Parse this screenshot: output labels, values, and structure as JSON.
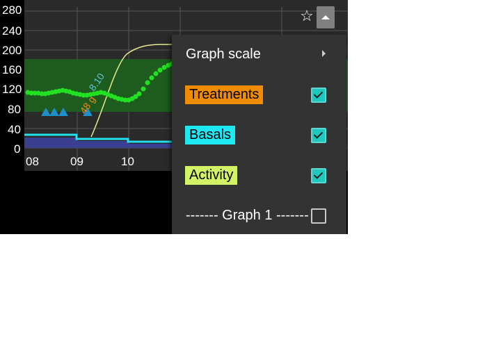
{
  "graph": {
    "y_ticks": [
      "280",
      "240",
      "200",
      "160",
      "120",
      "80",
      "40",
      "0"
    ],
    "x_ticks": [
      "08",
      "09",
      "10"
    ],
    "annotations": {
      "carbs_value": "8.10",
      "insulin_value": "48 g"
    }
  },
  "header": {
    "star_icon": "☆"
  },
  "menu": {
    "graph_scale_label": "Graph scale",
    "items": [
      {
        "label": "Treatments",
        "color": "#f08c00",
        "checked": true
      },
      {
        "label": "Basals",
        "color": "#1de9f5",
        "checked": true
      },
      {
        "label": "Activity",
        "color": "#d4f266",
        "checked": true
      }
    ],
    "graph1_label": "------- Graph 1 -------",
    "graph1_checked": false
  }
}
